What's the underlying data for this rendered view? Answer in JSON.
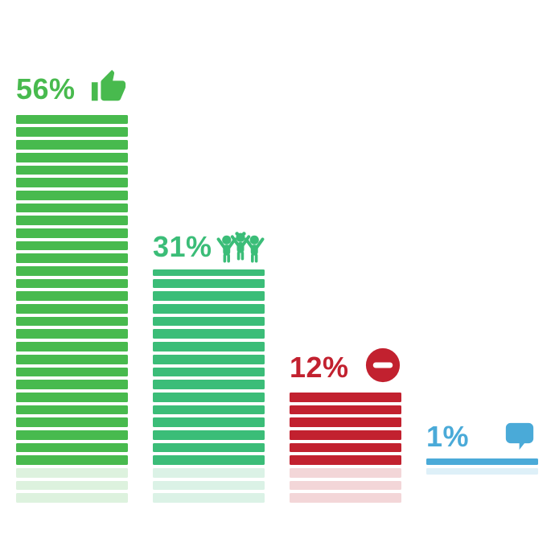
{
  "chart_data": {
    "type": "bar",
    "style": "striped-segment-bars-with-reflection",
    "title": "",
    "xlabel": "",
    "ylabel": "",
    "unit": "%",
    "grid": false,
    "legend": false,
    "ylim": [
      0,
      56
    ],
    "categories": [
      "thumbs-up",
      "people-group",
      "minus-circle",
      "chat-bubble"
    ],
    "values": [
      56,
      31,
      12,
      1
    ],
    "bars": [
      {
        "label": "56%",
        "value": 56,
        "color": "#48ba4e",
        "reflection_color_opacity": 0.18,
        "icon": "thumbs-up-icon"
      },
      {
        "label": "31%",
        "value": 31,
        "color": "#3bbd78",
        "reflection_color_opacity": 0.18,
        "icon": "people-group-icon"
      },
      {
        "label": "12%",
        "value": 12,
        "color": "#c2212f",
        "reflection_color_opacity": 0.18,
        "icon": "minus-circle-icon"
      },
      {
        "label": "1%",
        "value": 1,
        "color": "#4aaad8",
        "reflection_color_opacity": 0.18,
        "icon": "chat-bubble-icon"
      }
    ]
  }
}
